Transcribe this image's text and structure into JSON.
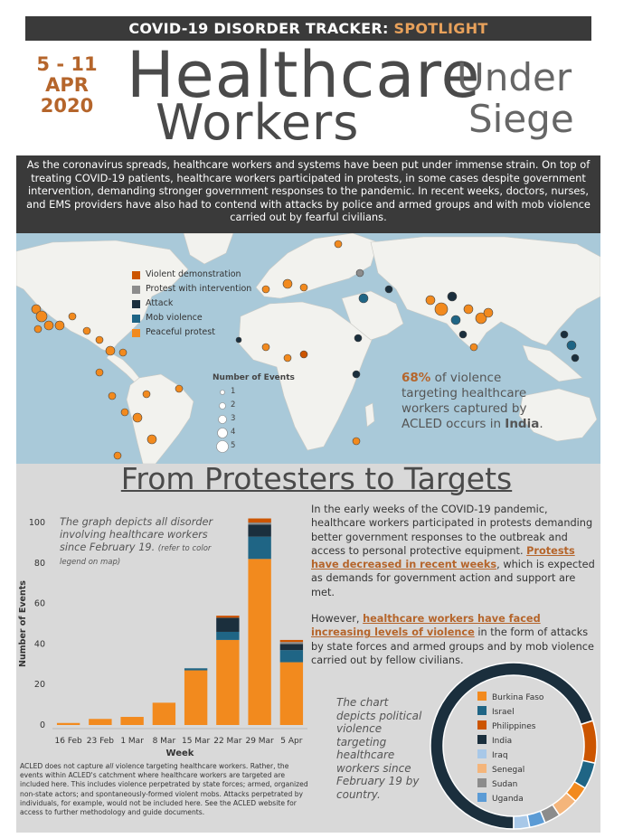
{
  "header": {
    "banner_main": "COVID-19 DISORDER TRACKER: ",
    "banner_highlight": "SPOTLIGHT",
    "date_range": "5 - 11",
    "date_month": "APR",
    "date_year": "2020",
    "title_line1": "Healthcare",
    "title_line2": "Workers",
    "title_under": "Under",
    "title_siege": "Siege"
  },
  "intro": "As the coronavirus spreads, healthcare workers and systems have been put under immense strain. On top of treating COVID-19 patients, healthcare workers participated in protests, in some cases despite government intervention, demanding stronger government responses to the pandemic. In recent weeks, doctors, nurses, and EMS providers have also had to contend with attacks by police and armed groups and with mob violence carried out by fearful civilians.",
  "map": {
    "legend": [
      {
        "label": "Violent demonstration",
        "color": "#cc5500"
      },
      {
        "label": "Protest with intervention",
        "color": "#8c8c8c"
      },
      {
        "label": "Attack",
        "color": "#1b2f3d"
      },
      {
        "label": "Mob violence",
        "color": "#1f6585"
      },
      {
        "label": "Peaceful protest",
        "color": "#f28a1e"
      }
    ],
    "size_legend_title": "Number of Events",
    "size_legend": [
      "1",
      "2",
      "3",
      "4",
      "5"
    ],
    "stat_pct": "68%",
    "stat_text_a": " of violence targeting healthcare workers captured by ACLED occurs in ",
    "stat_country": "India",
    "stat_end": "."
  },
  "section_title": "From Protesters to Targets",
  "paragraph1_a": "In the early weeks of the COVID-19 pandemic, healthcare workers participated in protests demanding better government responses to the outbreak and access to personal protective equipment. ",
  "paragraph1_b": "Protests have decreased in recent weeks",
  "paragraph1_c": ", which is expected as demands for government action and support are met.",
  "paragraph2_a": "However, ",
  "paragraph2_b": "healthcare workers have faced increasing levels of violence",
  "paragraph2_c": " in the form of attacks by state forces and armed groups and by mob violence carried out by fellow civilians.",
  "bar_caption_a": "The graph depicts all disorder involving healthcare workers since February 19. ",
  "bar_caption_b": "(refer to color legend on map)",
  "donut_caption": "The chart depicts political violence targeting healthcare workers since February 19 by country.",
  "disclaimer_a": "ACLED does not capture ",
  "disclaimer_em": "all",
  "disclaimer_b": " violence targeting healthcare workers. Rather, the events within ACLED's catchment where healthcare workers are targeted are included here. This includes violence perpetrated by state forces; armed, organized non-state actors; and spontaneously-formed violent mobs. Attacks perpetrated by individuals, for example, would not be included here. See the ACLED website for access to further methodology and guide documents.",
  "chart_data": [
    {
      "type": "bar",
      "stacked": true,
      "xlabel": "Week",
      "ylabel": "Number of Events",
      "ylim": [
        0,
        100
      ],
      "yticks": [
        0,
        20,
        40,
        60,
        80,
        100
      ],
      "categories": [
        "16 Feb",
        "23 Feb",
        "1 Mar",
        "8 Mar",
        "15 Mar",
        "22 Mar",
        "29 Mar",
        "5 Apr"
      ],
      "series": [
        {
          "name": "Peaceful protest",
          "color": "#f28a1e",
          "values": [
            1,
            3,
            4,
            11,
            27,
            42,
            82,
            31
          ]
        },
        {
          "name": "Mob violence",
          "color": "#1f6585",
          "values": [
            0,
            0,
            0,
            0,
            1,
            4,
            11,
            6
          ]
        },
        {
          "name": "Attack",
          "color": "#1b2f3d",
          "values": [
            0,
            0,
            0,
            0,
            0,
            7,
            6,
            3
          ]
        },
        {
          "name": "Protest with intervention",
          "color": "#8c8c8c",
          "values": [
            0,
            0,
            0,
            0,
            0,
            0,
            1,
            1
          ]
        },
        {
          "name": "Violent demonstration",
          "color": "#cc5500",
          "values": [
            0,
            0,
            0,
            0,
            0,
            1,
            2,
            1
          ]
        }
      ]
    },
    {
      "type": "pie",
      "donut": true,
      "categories": [
        "India",
        "Philippines",
        "Israel",
        "Burkina Faso",
        "Senegal",
        "Sudan",
        "Uganda",
        "Iraq"
      ],
      "values": [
        68,
        8,
        5,
        3,
        4,
        3,
        3,
        3
      ],
      "colors": [
        "#1b2f3d",
        "#cc5500",
        "#1f6585",
        "#f28a1e",
        "#f4b57b",
        "#8c8c8c",
        "#5b9bd5",
        "#a8c8e8"
      ],
      "legend": [
        {
          "label": "Burkina Faso",
          "color": "#f28a1e"
        },
        {
          "label": "Israel",
          "color": "#1f6585"
        },
        {
          "label": "Philippines",
          "color": "#cc5500"
        },
        {
          "label": "India",
          "color": "#1b2f3d"
        },
        {
          "label": "Iraq",
          "color": "#a8c8e8"
        },
        {
          "label": "Senegal",
          "color": "#f4b57b"
        },
        {
          "label": "Sudan",
          "color": "#8c8c8c"
        },
        {
          "label": "Uganda",
          "color": "#5b9bd5"
        }
      ]
    }
  ]
}
